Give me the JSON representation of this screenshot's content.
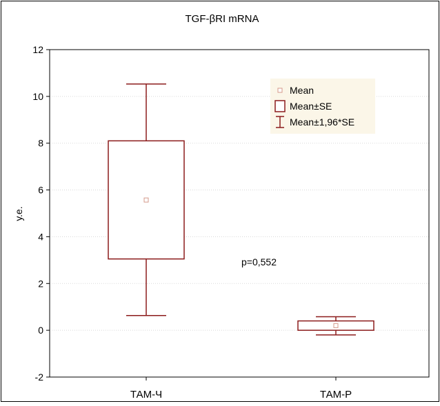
{
  "chart_data": {
    "type": "box",
    "title": "TGF-βRI mRNA",
    "xlabel": "",
    "ylabel": "у.е.",
    "ylim": [
      -2,
      12
    ],
    "yticks": [
      -2,
      0,
      2,
      4,
      6,
      8,
      10,
      12
    ],
    "grid": true,
    "legend_position": "top-right",
    "categories": [
      "ТАМ-Ч",
      "ТАМ-Р"
    ],
    "boxes": [
      {
        "category": "ТАМ-Ч",
        "mean": 5.57,
        "se_low": 3.05,
        "se_high": 8.1,
        "ci_low": 0.63,
        "ci_high": 10.53
      },
      {
        "category": "ТАМ-Р",
        "mean": 0.2,
        "se_low": 0.0,
        "se_high": 0.4,
        "ci_low": -0.2,
        "ci_high": 0.58
      }
    ],
    "legend": {
      "entries": [
        {
          "symbol": "point",
          "label": "Mean"
        },
        {
          "symbol": "box",
          "label": "Mean±SE"
        },
        {
          "symbol": "whisker",
          "label": "Mean±1,96*SE"
        }
      ]
    },
    "annotation": "p=0,552",
    "colors": {
      "box": "#8b1a1a",
      "mean_marker": "#d4988a",
      "legend_bg": "#fbf6e8",
      "grid": "#d8d8d8",
      "axis": "#000000"
    }
  }
}
